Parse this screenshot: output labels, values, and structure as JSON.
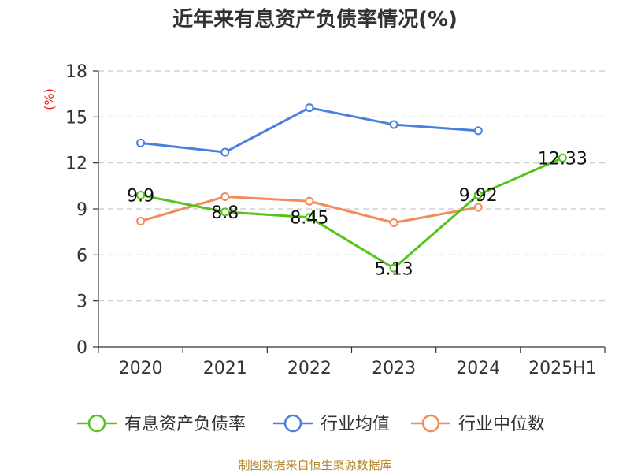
{
  "chart_data": {
    "type": "line",
    "title": "近年来有息资产负债率情况(%)",
    "unit": "(%)",
    "categories": [
      "2020",
      "2021",
      "2022",
      "2023",
      "2024",
      "2025H1"
    ],
    "ylim": [
      0,
      18
    ],
    "yticks": [
      0,
      3,
      6,
      9,
      12,
      15,
      18
    ],
    "grid": true,
    "legend_position": "bottom",
    "series": [
      {
        "name": "有息资产负债率",
        "color": "#52c41a",
        "labels": true,
        "values": [
          9.9,
          8.8,
          8.45,
          5.13,
          9.92,
          12.33
        ],
        "label_text": [
          "9.9",
          "8.8",
          "8.45",
          "5.13",
          "9.92",
          "12.33"
        ]
      },
      {
        "name": "行业均值",
        "color": "#4a7fe0",
        "labels": false,
        "values": [
          13.3,
          12.7,
          15.6,
          14.5,
          14.1,
          null
        ]
      },
      {
        "name": "行业中位数",
        "color": "#f28a5a",
        "labels": false,
        "values": [
          8.2,
          9.8,
          9.5,
          8.1,
          9.1,
          null
        ]
      }
    ]
  },
  "footer": {
    "source": "制图数据来自恒生聚源数据库"
  }
}
